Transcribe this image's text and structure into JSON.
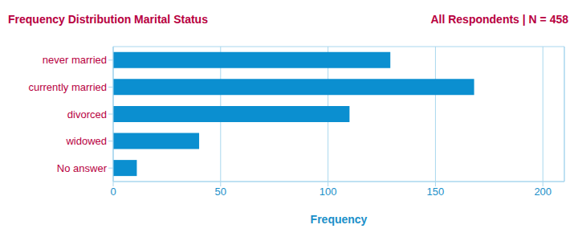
{
  "chart_data": {
    "type": "bar",
    "orientation": "horizontal",
    "title": "Frequency Distribution Marital Status",
    "subtitle": "All Respondents | N = 458",
    "x_label": "Frequency",
    "categories": [
      "never married",
      "currently married",
      "divorced",
      "widowed",
      "No answer"
    ],
    "values": [
      129,
      168,
      110,
      40,
      11
    ],
    "color": "#0b8fd0",
    "xlim": [
      0,
      210
    ],
    "xticks": [
      0,
      50,
      100,
      150,
      200
    ],
    "grid": true
  }
}
